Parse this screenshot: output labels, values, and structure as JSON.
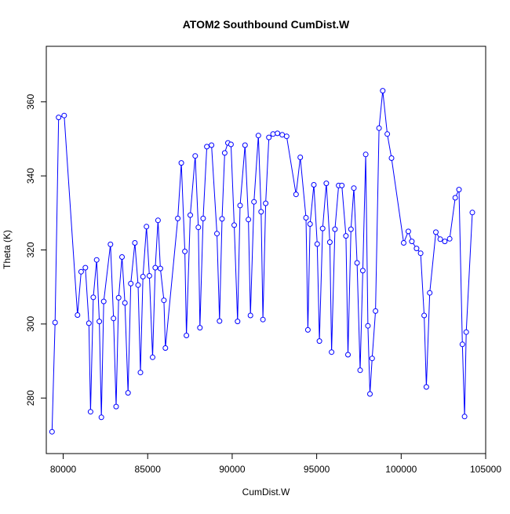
{
  "chart_data": {
    "type": "line",
    "title": "ATOM2 Southbound CumDist.W",
    "xlabel": "CumDist.W",
    "ylabel": "Theta (K)",
    "xlim": [
      79000,
      105000
    ],
    "ylim": [
      265,
      375
    ],
    "x_ticks": [
      80000,
      85000,
      90000,
      95000,
      100000,
      105000
    ],
    "y_ticks": [
      280,
      300,
      320,
      340,
      360
    ],
    "x_tick_labels": [
      "80000",
      "85000",
      "90000",
      "95000",
      "100000",
      "105000"
    ],
    "y_tick_labels": [
      "280",
      "300",
      "320",
      "340",
      "360"
    ],
    "grid": false,
    "legend": "none",
    "colors": {
      "line": "#0000ff",
      "points": "#0000ff",
      "axes": "#000000"
    },
    "series": [
      {
        "x": [
          79340,
          79520,
          79730,
          80060,
          80850,
          81060,
          81310,
          81520,
          81620,
          81780,
          81980,
          82140,
          82260,
          82400,
          82800,
          82980,
          83130,
          83280,
          83480,
          83650,
          83840,
          84000,
          84240,
          84430,
          84570,
          84720,
          84930,
          85100,
          85290,
          85450,
          85610,
          85750,
          85960,
          86050,
          86780,
          86990,
          87200,
          87290,
          87520,
          87810,
          88000,
          88090,
          88280,
          88500,
          88780,
          89100,
          89250,
          89400,
          89560,
          89750,
          89930,
          90120,
          90320,
          90470,
          90760,
          90960,
          91080,
          91290,
          91550,
          91710,
          91820,
          91980,
          92170,
          92420,
          92680,
          92960,
          93220,
          93780,
          94030,
          94370,
          94480,
          94610,
          94830,
          95030,
          95160,
          95350,
          95570,
          95780,
          95880,
          96080,
          96300,
          96490,
          96730,
          96850,
          97030,
          97200,
          97390,
          97570,
          97730,
          97900,
          98030,
          98150,
          98280,
          98480,
          98690,
          98910,
          99180,
          99430,
          100150,
          100420,
          100630,
          100910,
          101150,
          101360,
          101490,
          101690,
          102050,
          102310,
          102580,
          102870,
          103200,
          103420,
          103620,
          103750,
          103850,
          104210
        ],
        "y": [
          270.9,
          300.4,
          355.8,
          356.3,
          302.4,
          314.1,
          315.2,
          300.2,
          276.3,
          307.2,
          317.3,
          300.7,
          274.8,
          306.1,
          321.5,
          301.5,
          277.7,
          307.1,
          318.1,
          305.7,
          281.4,
          310.9,
          321.9,
          310.5,
          286.9,
          312.8,
          326.3,
          313.0,
          291.0,
          315.2,
          328.0,
          315.0,
          306.4,
          293.5,
          328.5,
          343.5,
          319.6,
          296.9,
          329.4,
          345.4,
          326.1,
          299.0,
          328.5,
          347.9,
          348.3,
          324.4,
          300.8,
          328.4,
          346.2,
          348.9,
          348.5,
          326.7,
          300.7,
          332.0,
          348.3,
          328.2,
          302.3,
          333.0,
          350.9,
          330.3,
          301.2,
          332.6,
          350.4,
          351.3,
          351.5,
          351.1,
          350.7,
          335.0,
          345.0,
          328.7,
          298.4,
          327.0,
          337.6,
          321.6,
          295.4,
          325.8,
          338.0,
          322.1,
          292.4,
          325.6,
          337.4,
          337.4,
          323.8,
          291.7,
          325.6,
          336.7,
          316.5,
          287.5,
          314.4,
          345.8,
          299.5,
          281.1,
          290.7,
          303.5,
          352.9,
          363.0,
          351.3,
          344.8,
          321.9,
          325.0,
          322.3,
          320.4,
          319.1,
          302.3,
          283.0,
          308.4,
          324.8,
          322.9,
          322.3,
          323.0,
          334.1,
          336.3,
          294.5,
          275.0,
          297.8,
          330.1
        ]
      }
    ]
  }
}
